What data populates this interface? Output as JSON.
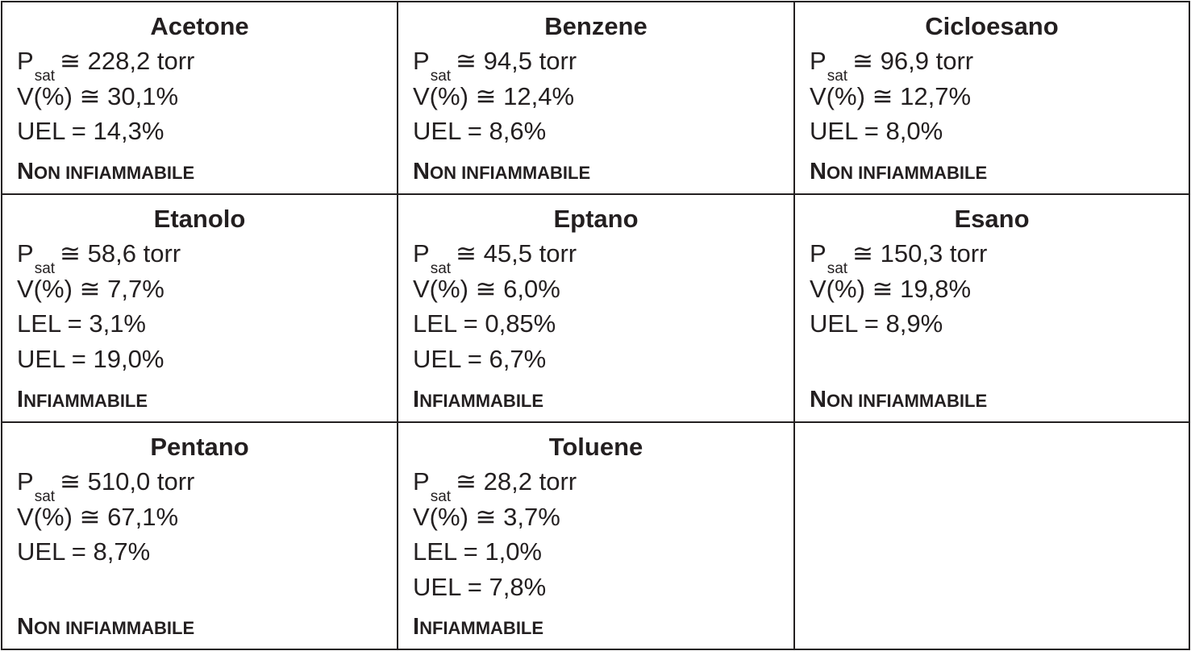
{
  "cells": [
    {
      "name": "Acetone",
      "psat_label": "P",
      "psat_sub": "sat",
      "psat_value": "228,2 torr",
      "v_value": "30,1%",
      "lel": "",
      "uel": "UEL = 14,3%",
      "status_cap": "N",
      "status_rest": "ON INFIAMMABILE"
    },
    {
      "name": "Benzene",
      "psat_label": "P",
      "psat_sub": "sat",
      "psat_value": "94,5 torr",
      "v_value": "12,4%",
      "lel": "",
      "uel": "UEL = 8,6%",
      "status_cap": "N",
      "status_rest": "ON INFIAMMABILE"
    },
    {
      "name": "Cicloesano",
      "psat_label": "P",
      "psat_sub": "sat",
      "psat_value": "96,9 torr",
      "v_value": "12,7%",
      "lel": "",
      "uel": "UEL = 8,0%",
      "status_cap": "N",
      "status_rest": "ON INFIAMMABILE"
    },
    {
      "name": "Etanolo",
      "psat_label": "P",
      "psat_sub": "sat",
      "psat_value": "58,6 torr",
      "v_value": "7,7%",
      "lel": "LEL = 3,1%",
      "uel": "UEL = 19,0%",
      "status_cap": "I",
      "status_rest": "NFIAMMABILE"
    },
    {
      "name": "Eptano",
      "psat_label": "P",
      "psat_sub": "sat",
      "psat_value": "45,5 torr",
      "v_value": "6,0%",
      "lel": "LEL = 0,85%",
      "uel": "UEL = 6,7%",
      "status_cap": "I",
      "status_rest": "NFIAMMABILE"
    },
    {
      "name": "Esano",
      "psat_label": "P",
      "psat_sub": "sat",
      "psat_value": "150,3 torr",
      "v_value": "19,8%",
      "lel": "",
      "uel": "UEL = 8,9%",
      "status_cap": "N",
      "status_rest": "ON INFIAMMABILE"
    },
    {
      "name": "Pentano",
      "psat_label": "P",
      "psat_sub": "sat",
      "psat_value": "510,0 torr",
      "v_value": "67,1%",
      "lel": "",
      "uel": "UEL = 8,7%",
      "status_cap": "N",
      "status_rest": "ON INFIAMMABILE"
    },
    {
      "name": "Toluene",
      "psat_label": "P",
      "psat_sub": "sat",
      "psat_value": "28,2 torr",
      "v_value": "3,7%",
      "lel": "LEL = 1,0%",
      "uel": "UEL = 7,8%",
      "status_cap": "I",
      "status_rest": "NFIAMMABILE"
    }
  ],
  "symbols": {
    "approx": "≅",
    "v_label": "V(%)"
  }
}
